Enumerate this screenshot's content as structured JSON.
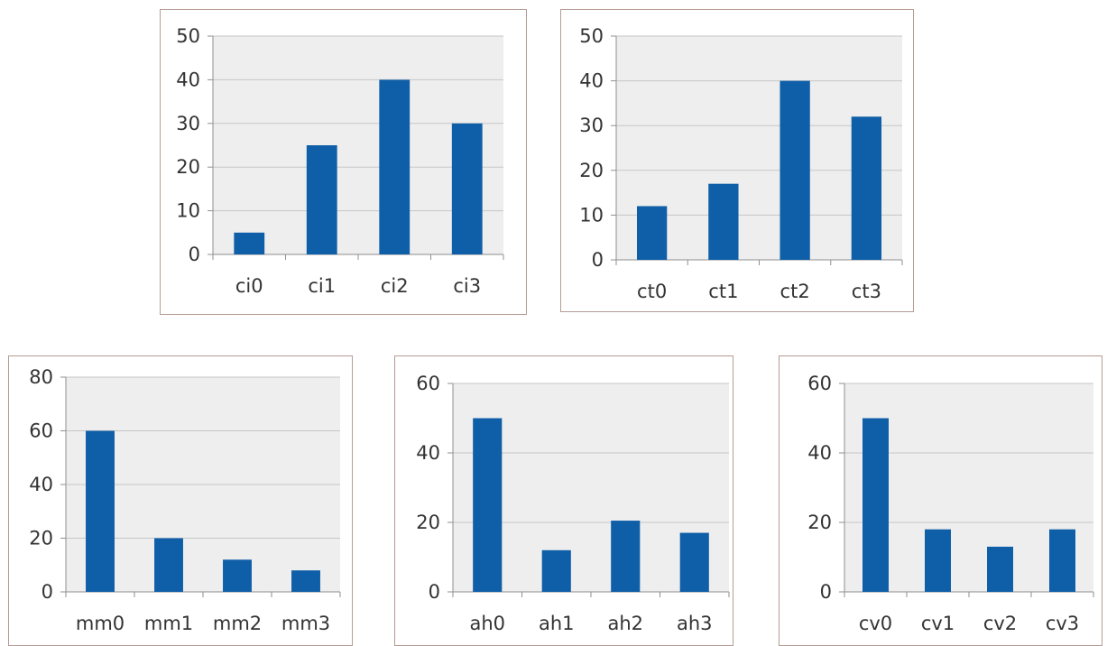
{
  "colors": {
    "bar": "#0f5ea8",
    "plot_background": "#eeeeee",
    "gridline": "#c6c6c6",
    "panel_border": "#b59b94"
  },
  "chart_data": [
    {
      "type": "bar",
      "title": "",
      "xlabel": "",
      "ylabel": "",
      "grid": true,
      "legend": "none",
      "categories": [
        "ci0",
        "ci1",
        "ci2",
        "ci3"
      ],
      "values": [
        5,
        25,
        40,
        30
      ],
      "ylim": [
        0,
        50
      ],
      "yticks": [
        0,
        10,
        20,
        30,
        40,
        50
      ]
    },
    {
      "type": "bar",
      "title": "",
      "xlabel": "",
      "ylabel": "",
      "grid": true,
      "legend": "none",
      "categories": [
        "ct0",
        "ct1",
        "ct2",
        "ct3"
      ],
      "values": [
        12,
        17,
        40,
        32
      ],
      "ylim": [
        0,
        50
      ],
      "yticks": [
        0,
        10,
        20,
        30,
        40,
        50
      ]
    },
    {
      "type": "bar",
      "title": "",
      "xlabel": "",
      "ylabel": "",
      "grid": true,
      "legend": "none",
      "categories": [
        "mm0",
        "mm1",
        "mm2",
        "mm3"
      ],
      "values": [
        60,
        20,
        12,
        8
      ],
      "ylim": [
        0,
        80
      ],
      "yticks": [
        0,
        20,
        40,
        60,
        80
      ]
    },
    {
      "type": "bar",
      "title": "",
      "xlabel": "",
      "ylabel": "",
      "grid": true,
      "legend": "none",
      "categories": [
        "ah0",
        "ah1",
        "ah2",
        "ah3"
      ],
      "values": [
        50,
        12,
        20.5,
        17
      ],
      "ylim": [
        0,
        60
      ],
      "yticks": [
        0,
        20,
        40,
        60
      ]
    },
    {
      "type": "bar",
      "title": "",
      "xlabel": "",
      "ylabel": "",
      "grid": true,
      "legend": "none",
      "categories": [
        "cv0",
        "cv1",
        "cv2",
        "cv3"
      ],
      "values": [
        50,
        18,
        13,
        18
      ],
      "ylim": [
        0,
        60
      ],
      "yticks": [
        0,
        20,
        40,
        60
      ]
    }
  ]
}
